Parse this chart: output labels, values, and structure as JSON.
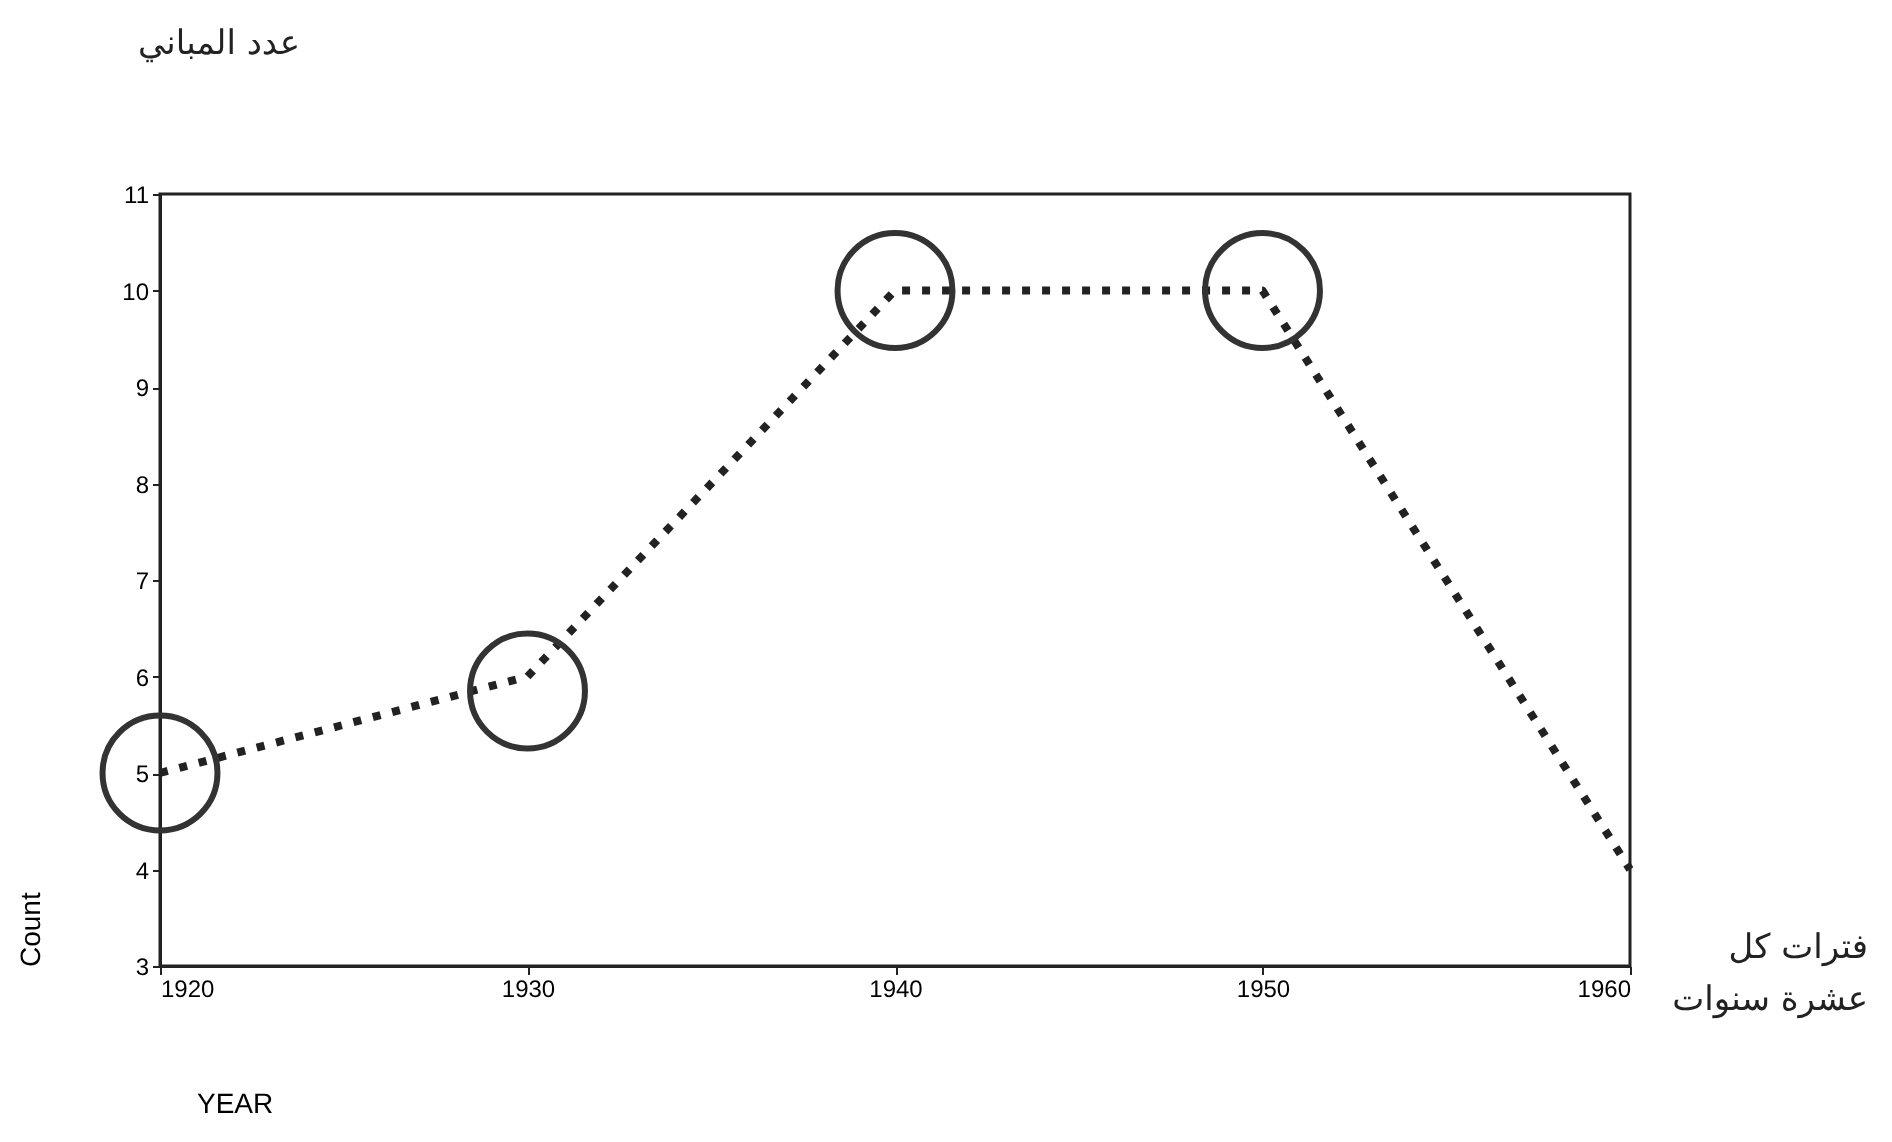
{
  "chart_data": {
    "type": "line",
    "xlabel": "YEAR",
    "ylabel": "Count",
    "annotations": [
      "عدد المباني",
      "فترات كل عشرة سنوات"
    ],
    "x": [
      1920,
      1930,
      1940,
      1950,
      1960
    ],
    "series": [
      {
        "color": "#222222",
        "values": [
          5,
          6,
          10,
          10,
          4
        ],
        "line_style": "dotted",
        "marker": "none"
      },
      {
        "type": "scatter",
        "color": "#333333",
        "values": [
          5,
          5.85,
          10,
          10,
          null
        ],
        "marker": "circle"
      }
    ],
    "xlim": [
      1920,
      1960
    ],
    "xticks": [
      1920,
      1930,
      1940,
      1950,
      1960
    ],
    "ylim": [
      3,
      11
    ],
    "yticks": [
      3,
      4,
      5,
      6,
      7,
      8,
      9,
      10,
      11
    ],
    "grid": false
  }
}
